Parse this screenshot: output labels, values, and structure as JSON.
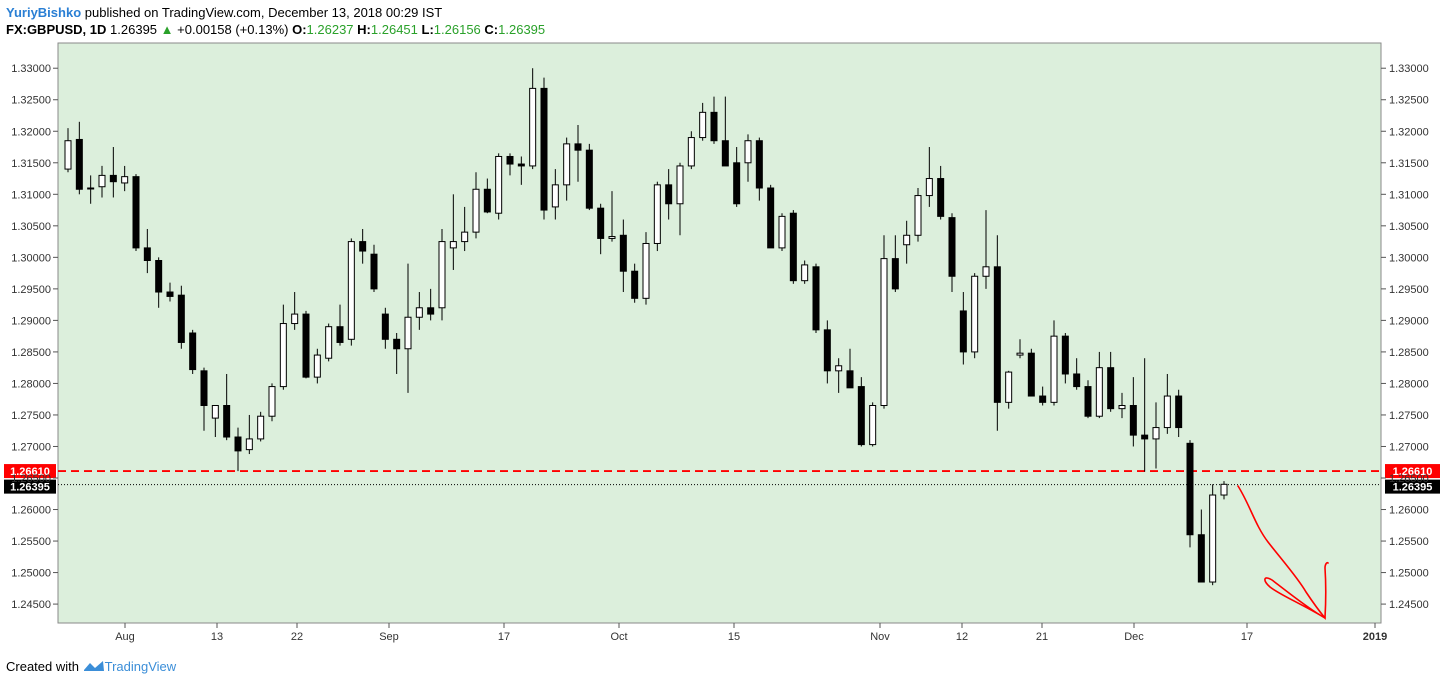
{
  "header": {
    "author": "YuriyBishko",
    "published_text": "published on TradingView.com, December 13, 2018 00:29 IST",
    "symbol": "FX:GBPUSD, 1D",
    "last": "1.26395",
    "change": "+0.00158 (+0.13%)",
    "o_label": "O:",
    "o_value": "1.26237",
    "h_label": "H:",
    "h_value": "1.26451",
    "l_label": "L:",
    "l_value": "1.26156",
    "c_label": "C:",
    "c_value": "1.26395"
  },
  "footer": {
    "created_with": "Created with",
    "brand": "TradingView"
  },
  "colors": {
    "plot_bg": "#dcefdc",
    "bull_body": "#ffffff",
    "bear_body": "#000000",
    "level_line": "#ff0000",
    "price_line": "#000000",
    "annotation": "#ff0000",
    "brand_blue": "#2a7fd4"
  },
  "chart_data": {
    "type": "candlestick",
    "ylim": [
      1.242,
      1.334
    ],
    "y_ticks": [
      "1.24500",
      "1.25000",
      "1.25500",
      "1.26000",
      "1.26500",
      "1.27000",
      "1.27500",
      "1.28000",
      "1.28500",
      "1.29000",
      "1.29500",
      "1.30000",
      "1.30500",
      "1.31000",
      "1.31500",
      "1.32000",
      "1.32500",
      "1.33000"
    ],
    "x_ticks": [
      "Aug",
      "13",
      "22",
      "Sep",
      "17",
      "Oct",
      "15",
      "Nov",
      "12",
      "21",
      "Dec",
      "17",
      "2019"
    ],
    "level": {
      "value": 1.2661,
      "label": "1.26610"
    },
    "last_price": {
      "value": 1.26395,
      "label": "1.26395"
    },
    "candles": [
      {
        "o": 1.314,
        "h": 1.3205,
        "l": 1.3135,
        "c": 1.3185
      },
      {
        "o": 1.3187,
        "h": 1.3215,
        "l": 1.31,
        "c": 1.3108
      },
      {
        "o": 1.311,
        "h": 1.313,
        "l": 1.3085,
        "c": 1.311
      },
      {
        "o": 1.3112,
        "h": 1.3145,
        "l": 1.3095,
        "c": 1.313
      },
      {
        "o": 1.313,
        "h": 1.3175,
        "l": 1.3095,
        "c": 1.312
      },
      {
        "o": 1.3118,
        "h": 1.3145,
        "l": 1.3105,
        "c": 1.3128
      },
      {
        "o": 1.3128,
        "h": 1.3132,
        "l": 1.301,
        "c": 1.3015
      },
      {
        "o": 1.3015,
        "h": 1.3045,
        "l": 1.2975,
        "c": 1.2995
      },
      {
        "o": 1.2995,
        "h": 1.3,
        "l": 1.292,
        "c": 1.2945
      },
      {
        "o": 1.2945,
        "h": 1.296,
        "l": 1.293,
        "c": 1.2938
      },
      {
        "o": 1.294,
        "h": 1.2955,
        "l": 1.2855,
        "c": 1.2865
      },
      {
        "o": 1.288,
        "h": 1.2885,
        "l": 1.2815,
        "c": 1.2822
      },
      {
        "o": 1.282,
        "h": 1.2825,
        "l": 1.2725,
        "c": 1.2765
      },
      {
        "o": 1.2745,
        "h": 1.2762,
        "l": 1.2715,
        "c": 1.2765
      },
      {
        "o": 1.2765,
        "h": 1.2815,
        "l": 1.271,
        "c": 1.2715
      },
      {
        "o": 1.2715,
        "h": 1.273,
        "l": 1.2661,
        "c": 1.2693
      },
      {
        "o": 1.2695,
        "h": 1.275,
        "l": 1.2688,
        "c": 1.2712
      },
      {
        "o": 1.2712,
        "h": 1.2755,
        "l": 1.2708,
        "c": 1.2748
      },
      {
        "o": 1.2748,
        "h": 1.28,
        "l": 1.274,
        "c": 1.2795
      },
      {
        "o": 1.2795,
        "h": 1.2925,
        "l": 1.279,
        "c": 1.2895
      },
      {
        "o": 1.2895,
        "h": 1.2945,
        "l": 1.2885,
        "c": 1.291
      },
      {
        "o": 1.291,
        "h": 1.2915,
        "l": 1.2808,
        "c": 1.281
      },
      {
        "o": 1.281,
        "h": 1.2855,
        "l": 1.28,
        "c": 1.2845
      },
      {
        "o": 1.284,
        "h": 1.2895,
        "l": 1.2835,
        "c": 1.289
      },
      {
        "o": 1.289,
        "h": 1.2925,
        "l": 1.286,
        "c": 1.2865
      },
      {
        "o": 1.287,
        "h": 1.303,
        "l": 1.286,
        "c": 1.3025
      },
      {
        "o": 1.3025,
        "h": 1.3045,
        "l": 1.299,
        "c": 1.301
      },
      {
        "o": 1.3005,
        "h": 1.302,
        "l": 1.2945,
        "c": 1.295
      },
      {
        "o": 1.291,
        "h": 1.292,
        "l": 1.2855,
        "c": 1.287
      },
      {
        "o": 1.287,
        "h": 1.288,
        "l": 1.2815,
        "c": 1.2855
      },
      {
        "o": 1.2855,
        "h": 1.299,
        "l": 1.2785,
        "c": 1.2905
      },
      {
        "o": 1.2905,
        "h": 1.2945,
        "l": 1.2885,
        "c": 1.292
      },
      {
        "o": 1.292,
        "h": 1.295,
        "l": 1.29,
        "c": 1.291
      },
      {
        "o": 1.292,
        "h": 1.3045,
        "l": 1.29,
        "c": 1.3025
      },
      {
        "o": 1.3015,
        "h": 1.31,
        "l": 1.298,
        "c": 1.3025
      },
      {
        "o": 1.3025,
        "h": 1.308,
        "l": 1.301,
        "c": 1.304
      },
      {
        "o": 1.304,
        "h": 1.3135,
        "l": 1.303,
        "c": 1.3108
      },
      {
        "o": 1.3108,
        "h": 1.3125,
        "l": 1.307,
        "c": 1.3072
      },
      {
        "o": 1.307,
        "h": 1.3165,
        "l": 1.306,
        "c": 1.316
      },
      {
        "o": 1.316,
        "h": 1.3165,
        "l": 1.313,
        "c": 1.3148
      },
      {
        "o": 1.3148,
        "h": 1.316,
        "l": 1.3115,
        "c": 1.3145
      },
      {
        "o": 1.3145,
        "h": 1.33,
        "l": 1.314,
        "c": 1.3268
      },
      {
        "o": 1.3268,
        "h": 1.3285,
        "l": 1.306,
        "c": 1.3075
      },
      {
        "o": 1.308,
        "h": 1.314,
        "l": 1.306,
        "c": 1.3115
      },
      {
        "o": 1.3115,
        "h": 1.319,
        "l": 1.309,
        "c": 1.318
      },
      {
        "o": 1.318,
        "h": 1.321,
        "l": 1.312,
        "c": 1.317
      },
      {
        "o": 1.317,
        "h": 1.318,
        "l": 1.3075,
        "c": 1.3078
      },
      {
        "o": 1.3078,
        "h": 1.3085,
        "l": 1.3005,
        "c": 1.303
      },
      {
        "o": 1.303,
        "h": 1.3105,
        "l": 1.3025,
        "c": 1.3033
      },
      {
        "o": 1.3035,
        "h": 1.306,
        "l": 1.2945,
        "c": 1.2978
      },
      {
        "o": 1.2978,
        "h": 1.299,
        "l": 1.2928,
        "c": 1.2935
      },
      {
        "o": 1.2935,
        "h": 1.304,
        "l": 1.2925,
        "c": 1.3022
      },
      {
        "o": 1.3022,
        "h": 1.312,
        "l": 1.301,
        "c": 1.3115
      },
      {
        "o": 1.3115,
        "h": 1.314,
        "l": 1.306,
        "c": 1.3085
      },
      {
        "o": 1.3085,
        "h": 1.315,
        "l": 1.3035,
        "c": 1.3145
      },
      {
        "o": 1.3145,
        "h": 1.32,
        "l": 1.314,
        "c": 1.319
      },
      {
        "o": 1.319,
        "h": 1.3245,
        "l": 1.3185,
        "c": 1.323
      },
      {
        "o": 1.323,
        "h": 1.3255,
        "l": 1.318,
        "c": 1.3185
      },
      {
        "o": 1.3185,
        "h": 1.3255,
        "l": 1.3145,
        "c": 1.3145
      },
      {
        "o": 1.315,
        "h": 1.3175,
        "l": 1.308,
        "c": 1.3085
      },
      {
        "o": 1.315,
        "h": 1.3195,
        "l": 1.312,
        "c": 1.3185
      },
      {
        "o": 1.3185,
        "h": 1.319,
        "l": 1.309,
        "c": 1.311
      },
      {
        "o": 1.311,
        "h": 1.3115,
        "l": 1.3015,
        "c": 1.3015
      },
      {
        "o": 1.3015,
        "h": 1.307,
        "l": 1.301,
        "c": 1.3065
      },
      {
        "o": 1.307,
        "h": 1.3075,
        "l": 1.2958,
        "c": 1.2963
      },
      {
        "o": 1.2963,
        "h": 1.2995,
        "l": 1.2958,
        "c": 1.2988
      },
      {
        "o": 1.2985,
        "h": 1.299,
        "l": 1.288,
        "c": 1.2885
      },
      {
        "o": 1.2885,
        "h": 1.29,
        "l": 1.28,
        "c": 1.282
      },
      {
        "o": 1.282,
        "h": 1.284,
        "l": 1.2785,
        "c": 1.2828
      },
      {
        "o": 1.282,
        "h": 1.2855,
        "l": 1.2795,
        "c": 1.2793
      },
      {
        "o": 1.2795,
        "h": 1.281,
        "l": 1.27,
        "c": 1.2703
      },
      {
        "o": 1.2703,
        "h": 1.277,
        "l": 1.27,
        "c": 1.2765
      },
      {
        "o": 1.2765,
        "h": 1.3035,
        "l": 1.276,
        "c": 1.2998
      },
      {
        "o": 1.2998,
        "h": 1.3035,
        "l": 1.2945,
        "c": 1.295
      },
      {
        "o": 1.302,
        "h": 1.3058,
        "l": 1.299,
        "c": 1.3035
      },
      {
        "o": 1.3035,
        "h": 1.311,
        "l": 1.3025,
        "c": 1.3098
      },
      {
        "o": 1.3098,
        "h": 1.3175,
        "l": 1.308,
        "c": 1.3125
      },
      {
        "o": 1.3125,
        "h": 1.3145,
        "l": 1.306,
        "c": 1.3065
      },
      {
        "o": 1.3063,
        "h": 1.307,
        "l": 1.2945,
        "c": 1.297
      },
      {
        "o": 1.2915,
        "h": 1.2945,
        "l": 1.283,
        "c": 1.285
      },
      {
        "o": 1.285,
        "h": 1.2975,
        "l": 1.284,
        "c": 1.297
      },
      {
        "o": 1.297,
        "h": 1.3075,
        "l": 1.295,
        "c": 1.2985
      },
      {
        "o": 1.2985,
        "h": 1.3035,
        "l": 1.2725,
        "c": 1.277
      },
      {
        "o": 1.277,
        "h": 1.282,
        "l": 1.276,
        "c": 1.2818
      },
      {
        "o": 1.2845,
        "h": 1.287,
        "l": 1.284,
        "c": 1.2848
      },
      {
        "o": 1.2848,
        "h": 1.2855,
        "l": 1.278,
        "c": 1.278
      },
      {
        "o": 1.278,
        "h": 1.2795,
        "l": 1.2765,
        "c": 1.277
      },
      {
        "o": 1.277,
        "h": 1.29,
        "l": 1.2765,
        "c": 1.2875
      },
      {
        "o": 1.2875,
        "h": 1.288,
        "l": 1.28,
        "c": 1.2815
      },
      {
        "o": 1.2815,
        "h": 1.284,
        "l": 1.279,
        "c": 1.2795
      },
      {
        "o": 1.2795,
        "h": 1.2805,
        "l": 1.2745,
        "c": 1.2748
      },
      {
        "o": 1.2748,
        "h": 1.285,
        "l": 1.2745,
        "c": 1.2825
      },
      {
        "o": 1.2825,
        "h": 1.285,
        "l": 1.2755,
        "c": 1.276
      },
      {
        "o": 1.276,
        "h": 1.2785,
        "l": 1.2745,
        "c": 1.2765
      },
      {
        "o": 1.2765,
        "h": 1.281,
        "l": 1.27,
        "c": 1.2718
      },
      {
        "o": 1.2718,
        "h": 1.284,
        "l": 1.266,
        "c": 1.2712
      },
      {
        "o": 1.2712,
        "h": 1.277,
        "l": 1.2665,
        "c": 1.273
      },
      {
        "o": 1.273,
        "h": 1.2815,
        "l": 1.272,
        "c": 1.278
      },
      {
        "o": 1.278,
        "h": 1.279,
        "l": 1.2715,
        "c": 1.273
      },
      {
        "o": 1.2705,
        "h": 1.271,
        "l": 1.254,
        "c": 1.256
      },
      {
        "o": 1.256,
        "h": 1.26,
        "l": 1.2485,
        "c": 1.2485
      },
      {
        "o": 1.2485,
        "h": 1.264,
        "l": 1.248,
        "c": 1.2623
      },
      {
        "o": 1.2623,
        "h": 1.2645,
        "l": 1.2616,
        "c": 1.264
      }
    ]
  }
}
